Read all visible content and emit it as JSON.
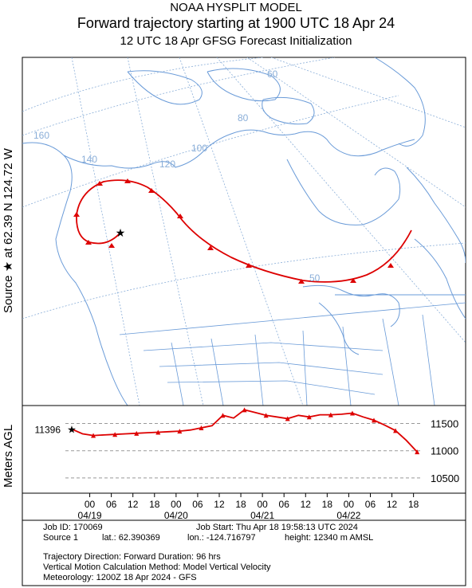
{
  "header": {
    "model": "NOAA HYSPLIT MODEL",
    "title": "Forward trajectory starting at 1900 UTC 18 Apr 24",
    "subtitle": "12 UTC 18 Apr    GFSG  Forecast Initialization"
  },
  "map": {
    "source_label": "Source ★  at   62.39 N   124.72 W",
    "graticule_labels": [
      "60",
      "80",
      "100",
      "120",
      "140",
      "160",
      "50"
    ],
    "colors": {
      "coast": "#6a9bd8",
      "trajectory": "#dd0000",
      "grid": "#8aaed8"
    }
  },
  "chart_data": {
    "type": "line",
    "ylabel": "Meters AGL",
    "start_value_label": "11396",
    "yticks": [
      10500,
      11000,
      11500
    ],
    "ylim": [
      10250,
      11800
    ],
    "x_hour_ticks": [
      "00",
      "06",
      "12",
      "18",
      "00",
      "06",
      "12",
      "18",
      "00",
      "06",
      "12",
      "18",
      "00",
      "06",
      "12",
      "18"
    ],
    "x_date_ticks": [
      "04/19",
      "04/20",
      "04/21",
      "04/22"
    ],
    "series": [
      {
        "x": [
          0,
          3,
          6,
          9,
          12,
          15,
          18,
          21,
          24,
          27,
          30,
          33,
          36,
          39,
          42,
          45,
          48,
          51,
          54,
          57,
          60,
          63,
          66,
          69,
          72,
          75,
          78,
          81,
          84,
          87,
          90,
          93,
          96
        ],
        "values": [
          11396,
          11310,
          11280,
          11290,
          11300,
          11310,
          11320,
          11330,
          11340,
          11350,
          11360,
          11380,
          11420,
          11460,
          11650,
          11600,
          11750,
          11700,
          11650,
          11620,
          11590,
          11650,
          11620,
          11660,
          11660,
          11670,
          11690,
          11620,
          11560,
          11470,
          11370,
          11190,
          10980
        ]
      }
    ]
  },
  "info": {
    "job_id": "Job ID: 170069",
    "job_start": "Job Start: Thu Apr 18 19:58:13 UTC 2024",
    "source1": "Source 1",
    "lat": "lat.: 62.390369",
    "lon": "lon.: -124.716797",
    "height": "height: 12340 m AMSL",
    "direction": "Trajectory Direction: Forward     Duration: 96 hrs",
    "vertical": "Vertical Motion Calculation Method:       Model Vertical Velocity",
    "met": "Meteorology: 1200Z 18 Apr 2024 - GFS"
  }
}
